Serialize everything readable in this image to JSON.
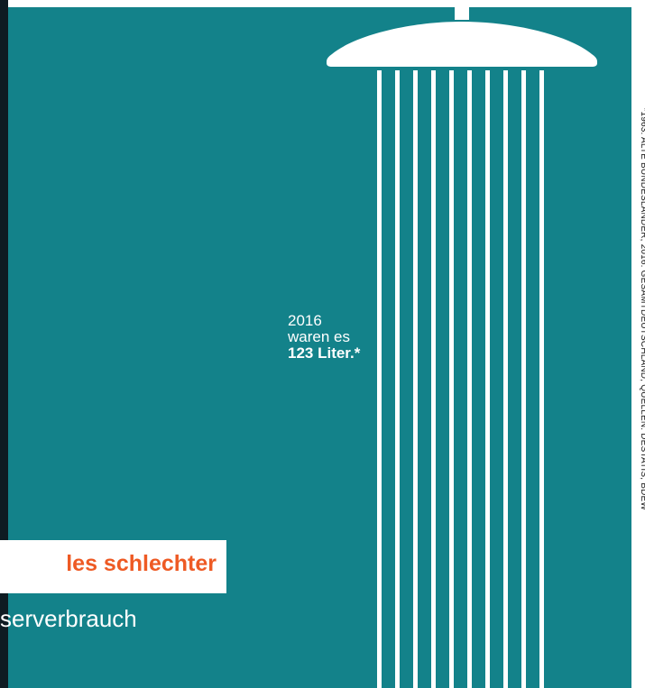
{
  "colors": {
    "panel": "#13828a",
    "dark_edge": "#0e1b22",
    "headline": "#ee5a24",
    "text_light": "#ffffff",
    "shower": "#ffffff"
  },
  "graphic": {
    "icon": "shower-head-icon",
    "water_streams": 10
  },
  "annotation": {
    "year": "2016",
    "text": "waren es",
    "amount": "123 Liter.*"
  },
  "headline": {
    "text": "les schlechter"
  },
  "subline": {
    "text": "serverbrauch"
  },
  "source_note": {
    "text": "*1963: ALTE BUNDESLÄNDER, 2016: GESAMTDEUTSCHLAND; QUELLEN: DESTATIS, BDEW"
  }
}
